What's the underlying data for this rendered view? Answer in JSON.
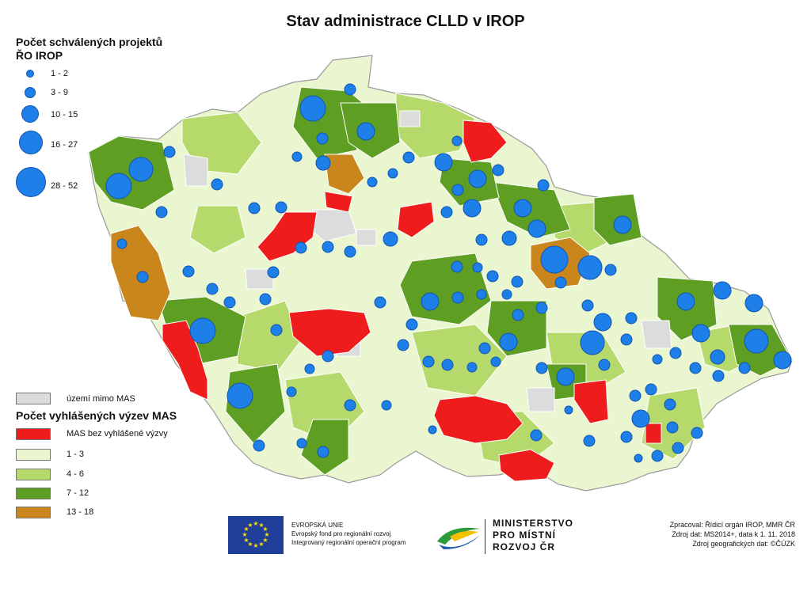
{
  "title": "Stav administrace CLLD v IROP",
  "legend_projects": {
    "title_line1": "Počet schválených projektů",
    "title_line2": "ŘO IROP",
    "classes": [
      "1 - 2",
      "3 - 9",
      "10 - 15",
      "16 - 27",
      "28 - 52"
    ]
  },
  "legend_calls": {
    "outside_label": "území mimo MAS",
    "title": "Počet vyhlášených výzev MAS",
    "classes": [
      {
        "label": "MAS bez vyhlášené výzvy",
        "color": "#ee1c1c"
      },
      {
        "label": "1 - 3",
        "color": "#eaf6d0"
      },
      {
        "label": "4 - 6",
        "color": "#b5d96a"
      },
      {
        "label": "7 - 12",
        "color": "#5e9e23"
      },
      {
        "label": "13 - 18",
        "color": "#c8861d"
      }
    ],
    "outside_color": "#dcdcdc"
  },
  "colors": {
    "bubble": "#1f7fe8",
    "border": "#ffffff"
  },
  "footer": {
    "eu_line1": "EVROPSKÁ UNIE",
    "eu_line2": "Evropský fond pro regionální rozvoj",
    "eu_line3": "Integrovaný regionální operační program",
    "ministry_line1": "MINISTERSTVO",
    "ministry_line2": "PRO MÍSTNÍ",
    "ministry_line3": "ROZVOJ ČR",
    "credit1": "Zpracoval: Řídicí orgán IROP, MMR ČR",
    "credit2": "Zdroj dat: MS2014+, data k 1. 11. 2018",
    "credit3": "Zdroj geografických dat: ©ČÚZK"
  }
}
